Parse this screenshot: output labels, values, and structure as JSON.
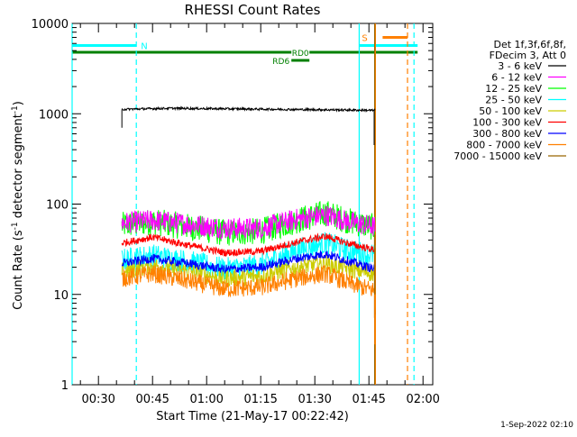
{
  "chart_data": {
    "type": "line",
    "title": "RHESSI Count Rates",
    "xlabel": "Start Time (21-May-17 00:22:42)",
    "ylabel_main": "Count Rate (s",
    "ylabel_exp1": "-1",
    "ylabel_mid": " detector segment",
    "ylabel_exp2": "-1",
    "ylabel_end": ")",
    "footer": "1-Sep-2022 02:10",
    "y_scale": "log",
    "ylim": [
      1,
      10000
    ],
    "xlim_minutes": [
      22.7,
      122.7
    ],
    "y_ticks": [
      {
        "value": 1,
        "label": "1"
      },
      {
        "value": 10,
        "label": "10"
      },
      {
        "value": 100,
        "label": "100"
      },
      {
        "value": 1000,
        "label": "1000"
      },
      {
        "value": 10000,
        "label": "10000"
      }
    ],
    "x_ticks": [
      {
        "minute": 30,
        "label": "00:30"
      },
      {
        "minute": 45,
        "label": "00:45"
      },
      {
        "minute": 60,
        "label": "01:00"
      },
      {
        "minute": 75,
        "label": "01:15"
      },
      {
        "minute": 90,
        "label": "01:30"
      },
      {
        "minute": 105,
        "label": "01:45"
      },
      {
        "minute": 120,
        "label": "02:00"
      }
    ],
    "legend_header": [
      "Det 1f,3f,6f,8f,",
      "FDecim 3, Att 0"
    ],
    "series": [
      {
        "name": "3 - 6 keV",
        "color": "#000000",
        "start": 36.5,
        "end": 106.7,
        "points": [
          [
            36.5,
            1120
          ],
          [
            50,
            1150
          ],
          [
            60,
            1140
          ],
          [
            70,
            1130
          ],
          [
            80,
            1120
          ],
          [
            90,
            1110
          ],
          [
            100,
            1100
          ],
          [
            106.7,
            1090
          ]
        ]
      },
      {
        "name": "6 - 12 keV",
        "color": "#ff00ff",
        "start": 36.5,
        "end": 106.7,
        "points": [
          [
            36.5,
            62
          ],
          [
            45,
            66
          ],
          [
            55,
            60
          ],
          [
            65,
            54
          ],
          [
            75,
            54
          ],
          [
            85,
            68
          ],
          [
            93,
            76
          ],
          [
            100,
            63
          ],
          [
            106.7,
            56
          ]
        ]
      },
      {
        "name": "12 - 25 keV",
        "color": "#00ff00",
        "start": 36.5,
        "end": 106.7,
        "points": [
          [
            36.5,
            58
          ],
          [
            45,
            64
          ],
          [
            55,
            56
          ],
          [
            65,
            48
          ],
          [
            75,
            50
          ],
          [
            85,
            66
          ],
          [
            93,
            80
          ],
          [
            100,
            64
          ],
          [
            106.7,
            55
          ]
        ]
      },
      {
        "name": "25 - 50 keV",
        "color": "#00ffff",
        "start": 36.5,
        "end": 106.7,
        "points": [
          [
            36.5,
            24
          ],
          [
            45,
            27
          ],
          [
            55,
            23
          ],
          [
            65,
            19
          ],
          [
            75,
            21
          ],
          [
            85,
            31
          ],
          [
            93,
            37
          ],
          [
            100,
            30
          ],
          [
            106.7,
            27
          ]
        ]
      },
      {
        "name": "50 - 100 keV",
        "color": "#cccc00",
        "start": 36.5,
        "end": 106.7,
        "points": [
          [
            36.5,
            18
          ],
          [
            45,
            21
          ],
          [
            55,
            18
          ],
          [
            65,
            15
          ],
          [
            75,
            16
          ],
          [
            85,
            20
          ],
          [
            93,
            22
          ],
          [
            100,
            19
          ],
          [
            106.7,
            17
          ]
        ]
      },
      {
        "name": "100 - 300 keV",
        "color": "#ff0000",
        "start": 36.5,
        "end": 106.7,
        "points": [
          [
            36.5,
            37
          ],
          [
            45,
            43
          ],
          [
            55,
            35
          ],
          [
            65,
            29
          ],
          [
            75,
            30
          ],
          [
            85,
            38
          ],
          [
            93,
            44
          ],
          [
            100,
            36
          ],
          [
            106.7,
            31
          ]
        ]
      },
      {
        "name": "300 - 800 keV",
        "color": "#0000ff",
        "start": 36.5,
        "end": 106.7,
        "points": [
          [
            36.5,
            22
          ],
          [
            45,
            25
          ],
          [
            55,
            22
          ],
          [
            65,
            19
          ],
          [
            75,
            20
          ],
          [
            85,
            25
          ],
          [
            93,
            28
          ],
          [
            100,
            23
          ],
          [
            106.7,
            19
          ]
        ]
      },
      {
        "name": "800 - 7000 keV",
        "color": "#ff8000",
        "start": 36.5,
        "end": 106.7,
        "points": [
          [
            36.5,
            15
          ],
          [
            45,
            17
          ],
          [
            55,
            14
          ],
          [
            65,
            11.5
          ],
          [
            75,
            12
          ],
          [
            85,
            15
          ],
          [
            93,
            17
          ],
          [
            100,
            13
          ],
          [
            106.7,
            11
          ]
        ]
      },
      {
        "name": "7000 - 15000 keV",
        "color": "#996600",
        "start": 106.6,
        "end": 106.8,
        "points": [
          [
            106.6,
            9
          ],
          [
            106.8,
            6
          ]
        ]
      }
    ],
    "bars": [
      {
        "label": "N",
        "color": "#00ffff",
        "start": 22.7,
        "end": 40.5,
        "value": 5700
      },
      {
        "label": "S",
        "color": "#00ffff",
        "start": 102.3,
        "end": 118.5,
        "value": 5700
      },
      {
        "label": "",
        "color": "#ff8000",
        "start": 106.8,
        "end": 115.7,
        "value": 7000
      },
      {
        "label": "RD0",
        "color": "#008000",
        "start": 22.7,
        "end": 118.5,
        "value": 4800
      },
      {
        "label": "RD6",
        "color": "#008000",
        "start": 83.5,
        "end": 88.5,
        "value": 3900
      }
    ],
    "vlines": [
      {
        "minute": 22.7,
        "color": "#00ffff",
        "dashed": false
      },
      {
        "minute": 40.5,
        "color": "#00ffff",
        "dashed": true
      },
      {
        "minute": 102.3,
        "color": "#00ffff",
        "dashed": false
      },
      {
        "minute": 106.8,
        "color": "#ff8000",
        "dashed": false
      },
      {
        "minute": 106.6,
        "color": "#996600",
        "dashed": false
      },
      {
        "minute": 115.7,
        "color": "#ff8000",
        "dashed": true
      },
      {
        "minute": 117.5,
        "color": "#00ffff",
        "dashed": true
      }
    ],
    "grid": false,
    "legend_position": "right"
  }
}
